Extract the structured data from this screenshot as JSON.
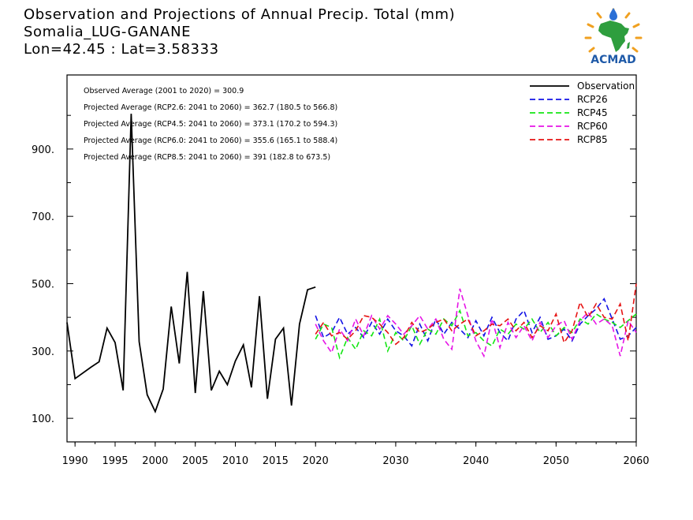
{
  "header": {
    "line1": "Observation and Projections of Annual Precip. Total (mm)",
    "line2": "Somalia_LUG-GANANE",
    "line3": "Lon=42.45 : Lat=3.58333"
  },
  "logo": {
    "text": "ACMAD",
    "icon": "africa-map-logo",
    "colors": {
      "africa": "#2e9e3e",
      "rays": "#f0a020",
      "drop": "#2a6fd6",
      "text": "#1f5aa8"
    }
  },
  "stats": [
    "Observed Average (2001 to 2020) = 300.9",
    "Projected Average (RCP2.6: 2041 to 2060) = 362.7 (180.5 to 566.8)",
    "Projected Average (RCP4.5: 2041 to 2060) = 373.1 (170.2 to 594.3)",
    "Projected Average (RCP6.0: 2041 to 2060) = 355.6 (165.1 to 588.4)",
    "Projected Average (RCP8.5: 2041 to 2060) = 391 (182.8 to 673.5)"
  ],
  "chart_data": {
    "type": "line",
    "xlim": [
      1989,
      2060
    ],
    "ylim": [
      30,
      1120
    ],
    "yticks_labeled": [
      100,
      300,
      500,
      700,
      900
    ],
    "yticks_minor": [
      200,
      400,
      600,
      800,
      1000
    ],
    "ytick_labels": [
      "100.",
      "300.",
      "500.",
      "700.",
      "900."
    ],
    "xticks_labeled": [
      1990,
      1995,
      2000,
      2005,
      2010,
      2015,
      2020,
      2030,
      2040,
      2050,
      2060
    ],
    "xtick_labels": [
      "1990",
      "1995",
      "2000",
      "2005",
      "2010",
      "2015",
      "2020",
      "2030",
      "2040",
      "2050",
      "2060"
    ],
    "legend_position": "top-right",
    "series": [
      {
        "name": "Observation",
        "color": "#000000",
        "dash": "solid",
        "x": [
          1989,
          1990,
          1992,
          1993,
          1994,
          1995,
          1996,
          1997,
          1998,
          1999,
          2000,
          2001,
          2002,
          2003,
          2004,
          2005,
          2006,
          2007,
          2008,
          2009,
          2010,
          2011,
          2012,
          2013,
          2014,
          2015,
          2016,
          2017,
          2018,
          2019,
          2020
        ],
        "y": [
          385,
          218,
          252,
          268,
          368,
          325,
          183,
          1005,
          328,
          170,
          120,
          187,
          432,
          263,
          535,
          175,
          478,
          183,
          240,
          200,
          270,
          318,
          192,
          463,
          158,
          335,
          368,
          138,
          380,
          482,
          490
        ]
      },
      {
        "name": "RCP26",
        "color": "#1414e6",
        "dash": "dashed",
        "x": [
          2020,
          2021,
          2022,
          2023,
          2024,
          2025,
          2026,
          2027,
          2028,
          2029,
          2030,
          2031,
          2032,
          2033,
          2034,
          2035,
          2036,
          2037,
          2038,
          2039,
          2040,
          2041,
          2042,
          2043,
          2044,
          2045,
          2046,
          2047,
          2048,
          2049,
          2050,
          2051,
          2052,
          2053,
          2054,
          2055,
          2056,
          2057,
          2058,
          2059,
          2060
        ],
        "y": [
          405,
          340,
          355,
          400,
          350,
          370,
          340,
          385,
          350,
          395,
          360,
          345,
          315,
          380,
          330,
          395,
          350,
          385,
          365,
          340,
          390,
          345,
          400,
          355,
          330,
          395,
          420,
          355,
          400,
          335,
          345,
          365,
          330,
          380,
          405,
          425,
          455,
          395,
          335,
          345,
          370
        ]
      },
      {
        "name": "RCP45",
        "color": "#14e614",
        "dash": "dashed",
        "x": [
          2020,
          2021,
          2022,
          2023,
          2024,
          2025,
          2026,
          2027,
          2028,
          2029,
          2030,
          2031,
          2032,
          2033,
          2034,
          2035,
          2036,
          2037,
          2038,
          2039,
          2040,
          2041,
          2042,
          2043,
          2044,
          2045,
          2046,
          2047,
          2048,
          2049,
          2050,
          2051,
          2052,
          2053,
          2054,
          2055,
          2056,
          2057,
          2058,
          2059,
          2060
        ],
        "y": [
          335,
          380,
          370,
          280,
          340,
          305,
          360,
          345,
          395,
          300,
          355,
          330,
          375,
          320,
          365,
          350,
          395,
          375,
          420,
          345,
          355,
          330,
          315,
          365,
          350,
          380,
          365,
          395,
          355,
          385,
          345,
          370,
          355,
          395,
          380,
          410,
          395,
          385,
          370,
          390,
          410
        ]
      },
      {
        "name": "RCP60",
        "color": "#e614e6",
        "dash": "dashed",
        "x": [
          2020,
          2021,
          2022,
          2023,
          2024,
          2025,
          2026,
          2027,
          2028,
          2029,
          2030,
          2031,
          2032,
          2033,
          2034,
          2035,
          2036,
          2037,
          2038,
          2039,
          2040,
          2041,
          2042,
          2043,
          2044,
          2045,
          2046,
          2047,
          2048,
          2049,
          2050,
          2051,
          2052,
          2053,
          2054,
          2055,
          2056,
          2057,
          2058,
          2059,
          2060
        ],
        "y": [
          380,
          330,
          295,
          365,
          330,
          395,
          345,
          405,
          365,
          405,
          380,
          350,
          375,
          405,
          365,
          395,
          335,
          305,
          485,
          405,
          330,
          285,
          395,
          310,
          385,
          340,
          375,
          330,
          385,
          340,
          375,
          390,
          335,
          390,
          415,
          380,
          395,
          375,
          285,
          390,
          355
        ]
      },
      {
        "name": "RCP85",
        "color": "#e61414",
        "dash": "dashed",
        "x": [
          2020,
          2021,
          2022,
          2023,
          2024,
          2025,
          2026,
          2027,
          2028,
          2029,
          2030,
          2031,
          2032,
          2033,
          2034,
          2035,
          2036,
          2037,
          2038,
          2039,
          2040,
          2041,
          2042,
          2043,
          2044,
          2045,
          2046,
          2047,
          2048,
          2049,
          2050,
          2051,
          2052,
          2053,
          2054,
          2055,
          2056,
          2057,
          2058,
          2059,
          2060
        ],
        "y": [
          350,
          385,
          345,
          355,
          335,
          360,
          405,
          400,
          380,
          355,
          320,
          340,
          385,
          355,
          365,
          385,
          395,
          360,
          380,
          395,
          345,
          360,
          380,
          375,
          395,
          360,
          385,
          340,
          375,
          360,
          410,
          325,
          360,
          445,
          400,
          440,
          400,
          395,
          440,
          330,
          500
        ]
      }
    ]
  }
}
